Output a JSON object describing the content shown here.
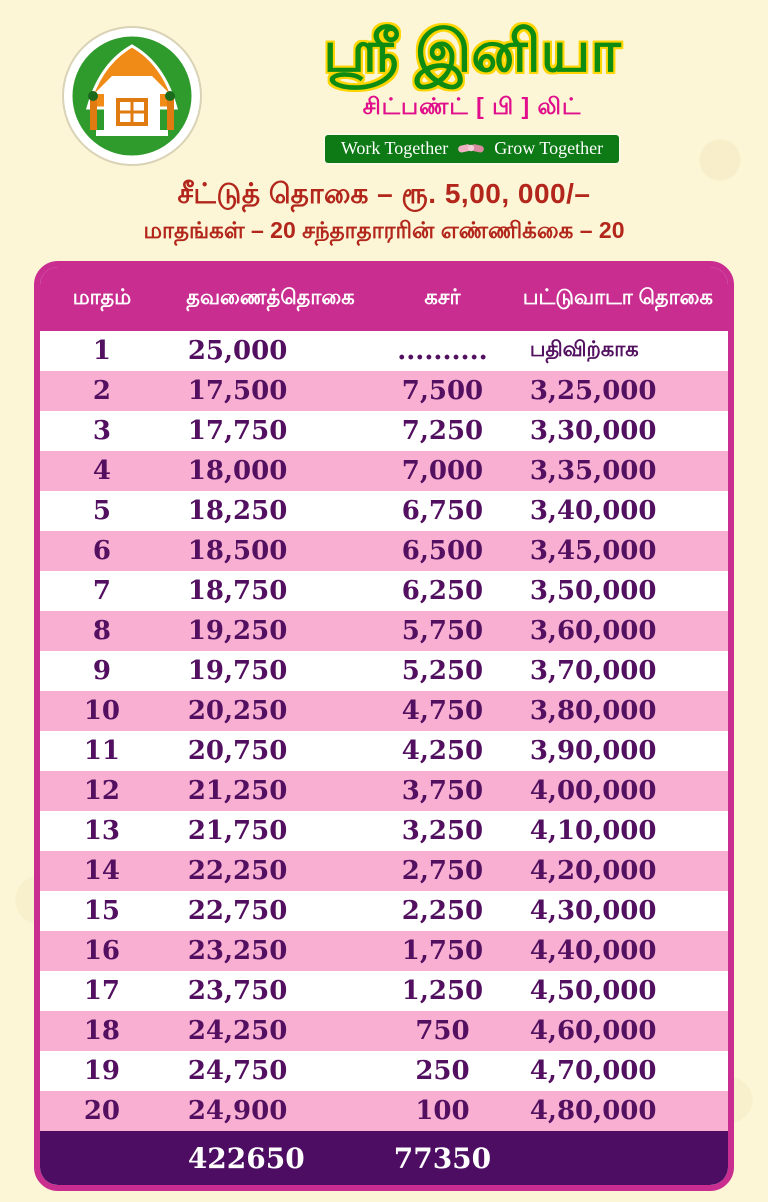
{
  "header": {
    "title": "ஸ்ரீ இனியா",
    "subtitle": "சிட்பண்ட் [ பி ] லிட்",
    "banner_left": "Work Together",
    "banner_right": "Grow Together"
  },
  "scheme": {
    "line1": "சீட்டுத் தொகை – ரூ. 5,00, 000/–",
    "line2": "மாதங்கள் – 20 சந்தாதாரரின் எண்ணிக்கை – 20"
  },
  "table": {
    "headers": [
      "மாதம்",
      "தவணைத்தொகை",
      "கசர்",
      "பட்டுவாடா தொகை"
    ],
    "rows": [
      [
        "1",
        "25,000",
        "..........",
        "பதிவிற்காக"
      ],
      [
        "2",
        "17,500",
        "7,500",
        "3,25,000"
      ],
      [
        "3",
        "17,750",
        "7,250",
        "3,30,000"
      ],
      [
        "4",
        "18,000",
        "7,000",
        "3,35,000"
      ],
      [
        "5",
        "18,250",
        "6,750",
        "3,40,000"
      ],
      [
        "6",
        "18,500",
        "6,500",
        "3,45,000"
      ],
      [
        "7",
        "18,750",
        "6,250",
        "3,50,000"
      ],
      [
        "8",
        "19,250",
        "5,750",
        "3,60,000"
      ],
      [
        "9",
        "19,750",
        "5,250",
        "3,70,000"
      ],
      [
        "10",
        "20,250",
        "4,750",
        "3,80,000"
      ],
      [
        "11",
        "20,750",
        "4,250",
        "3,90,000"
      ],
      [
        "12",
        "21,250",
        "3,750",
        "4,00,000"
      ],
      [
        "13",
        "21,750",
        "3,250",
        "4,10,000"
      ],
      [
        "14",
        "22,250",
        "2,750",
        "4,20,000"
      ],
      [
        "15",
        "22,750",
        "2,250",
        "4,30,000"
      ],
      [
        "16",
        "23,250",
        "1,750",
        "4,40,000"
      ],
      [
        "17",
        "23,750",
        "1,250",
        "4,50,000"
      ],
      [
        "18",
        "24,250",
        "750",
        "4,60,000"
      ],
      [
        "19",
        "24,750",
        "250",
        "4,70,000"
      ],
      [
        "20",
        "24,900",
        "100",
        "4,80,000"
      ]
    ],
    "total_installment": "422650",
    "total_kasar": "77350"
  },
  "colors": {
    "background": "#fcf5d6",
    "magenta": "#c92d90",
    "pink_row": "#f8afd2",
    "purple_text": "#531060",
    "footer_purple": "#4d0d63",
    "green_title": "#0e8c12",
    "yellow_outline": "#ffd500",
    "banner_green": "#0d7a15",
    "red_text": "#b2261b"
  }
}
